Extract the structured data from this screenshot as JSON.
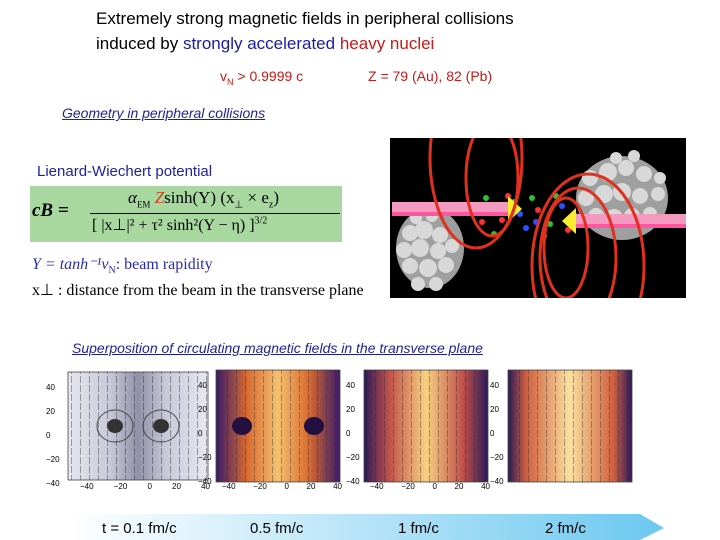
{
  "title": {
    "line1": "Extremely strong magnetic fields in peripheral collisions",
    "line2_prefix": "induced by ",
    "line2_blue": "strongly accelerated",
    "line2_space": " ",
    "line2_red": "heavy nuclei"
  },
  "params": {
    "velocity": "v",
    "velocity_sub": "N",
    "velocity_rest": " > 0.9999 c",
    "charge": "Z = 79 (Au), 82 (Pb)"
  },
  "geometry_heading": "Geometry in peripheral collisions",
  "lw_label": "Lienard-Wiechert potential",
  "formula": {
    "lhs": "cB =",
    "numerator_alpha": "α",
    "numerator_alpha_sub": "EM",
    "numerator_Z": "Z",
    "numerator_rest": "sinh(Y)  (x",
    "numerator_cross": " × e",
    "numerator_end": ")",
    "denominator": "[ |x⊥|² + τ² sinh²(Y − η) ]",
    "denominator_exp": "3/2"
  },
  "rapidity_line": "Y = tanh⁻¹v",
  "rapidity_sub": "N",
  "rapidity_desc": ":  beam rapidity",
  "distance_line": "x⊥ :  distance from the beam in the transverse plane",
  "superposition_heading": "Superposition of circulating magnetic fields in the transverse plane",
  "panels": [
    {
      "ticks_y": [
        "40",
        "20",
        "0",
        "−20",
        "−40"
      ],
      "ticks_x": [
        "−40",
        "−20",
        "0",
        "20",
        "40"
      ]
    },
    {
      "ticks_y": [
        "40",
        "20",
        "0",
        "−20",
        "−40"
      ],
      "ticks_x": [
        "−40",
        "−20",
        "0",
        "20",
        "40"
      ]
    },
    {
      "ticks_y": [
        "40",
        "20",
        "0",
        "−20",
        "−40"
      ],
      "ticks_x": [
        "−40",
        "−20",
        "0",
        "20",
        "40"
      ]
    },
    {
      "ticks_y": [
        "40",
        "20",
        "0",
        "−20",
        "−40"
      ],
      "ticks_x": []
    }
  ],
  "times": [
    "t = 0.1 fm/c",
    "0.5 fm/c",
    "1 fm/c",
    "2 fm/c"
  ],
  "colors": {
    "title_blue": "#1a1aa8",
    "title_red": "#c81818",
    "arrow_band": "#9fd3ff",
    "field_loop": "#e0301e"
  }
}
